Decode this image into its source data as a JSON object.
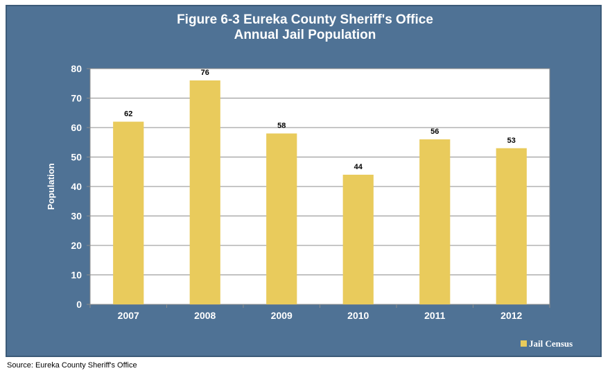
{
  "chart_data": {
    "type": "bar",
    "title": "Figure 6-3 Eureka County Sheriff's Office",
    "subtitle": "Annual Jail Population",
    "categories": [
      "2007",
      "2008",
      "2009",
      "2010",
      "2011",
      "2012"
    ],
    "series": [
      {
        "name": "Jail Census",
        "values": [
          62,
          76,
          58,
          44,
          56,
          53
        ]
      }
    ],
    "ylabel": "Population",
    "xlabel": "",
    "ylim": [
      0,
      80
    ],
    "yticks": [
      0,
      10,
      20,
      30,
      40,
      50,
      60,
      70,
      80
    ],
    "grid": true,
    "legend_position": "bottom-right",
    "data_labels": true
  },
  "colors": {
    "frame_background": "#4f7295",
    "plot_background": "#ffffff",
    "bar": "#e9cb5c",
    "gridline": "#8c8c8c",
    "text_light": "#ffffff",
    "text_dark": "#000000"
  },
  "source_note": "Source: Eureka County Sheriff's Office"
}
